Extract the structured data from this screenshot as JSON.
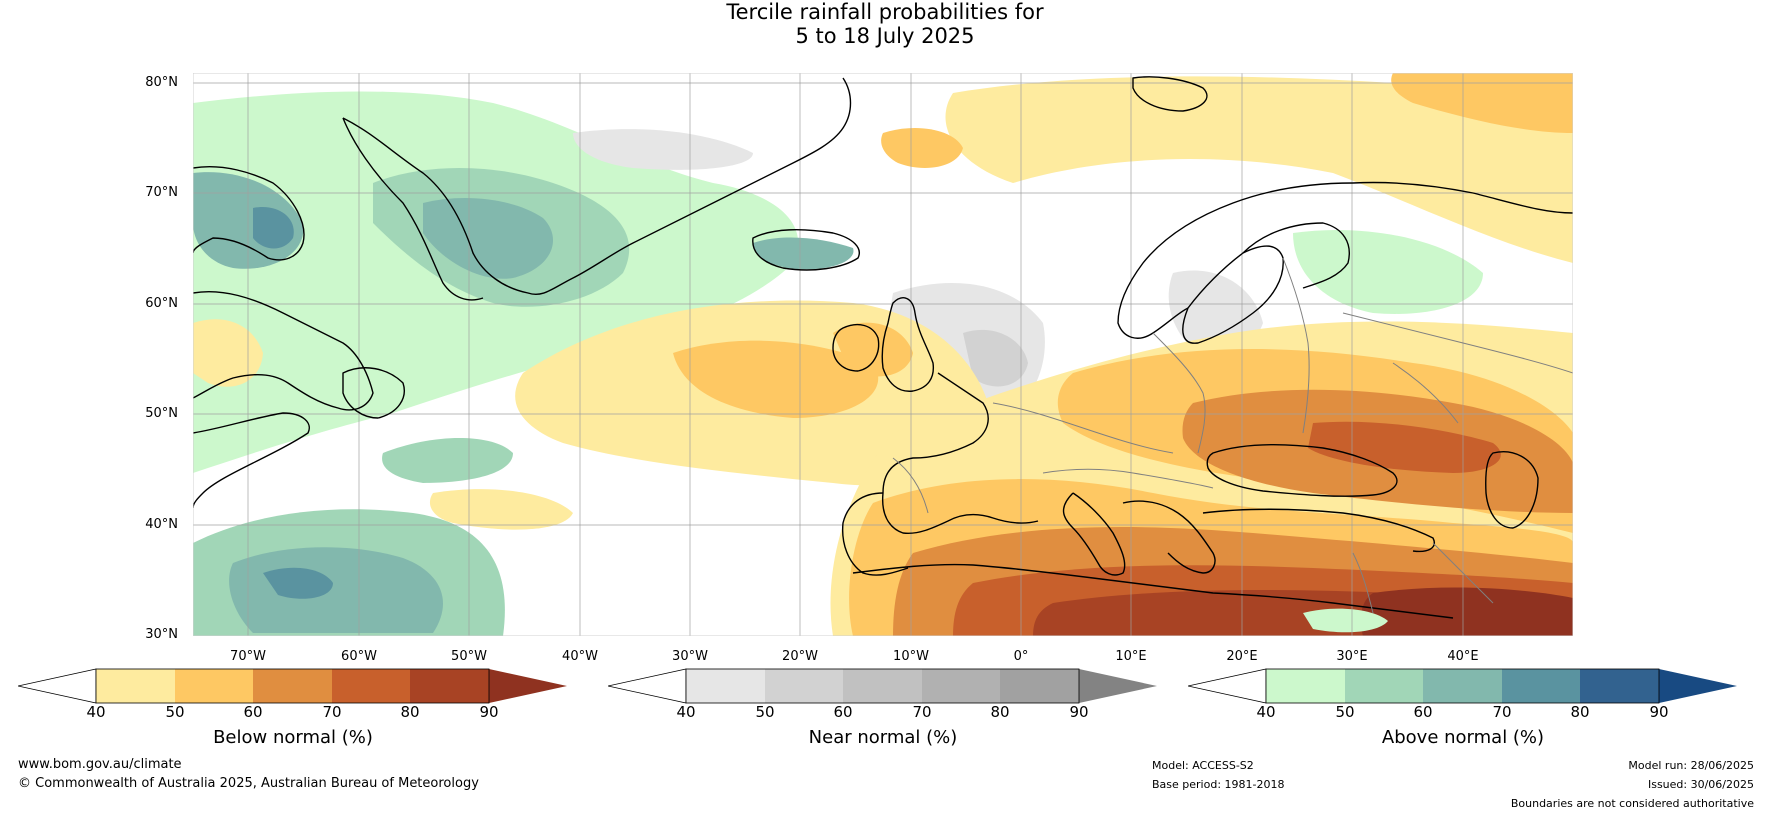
{
  "title": {
    "line1": "Tercile rainfall probabilities for",
    "line2": "5 to 18 July 2025"
  },
  "map": {
    "lat_labels": [
      "80°N",
      "70°N",
      "60°N",
      "50°N",
      "40°N",
      "30°N"
    ],
    "lon_labels": [
      "70°W",
      "60°W",
      "50°W",
      "40°W",
      "30°W",
      "20°W",
      "10°W",
      "0°",
      "10°E",
      "20°E",
      "30°E",
      "40°E"
    ],
    "lat_range": [
      30,
      80
    ],
    "lon_range": [
      -80,
      45
    ]
  },
  "colorbars": [
    {
      "label": "Below normal (%)",
      "ticks": [
        "40",
        "50",
        "60",
        "70",
        "80",
        "90"
      ],
      "colors": [
        "#ffffff",
        "#feeb9f",
        "#fec863",
        "#e08e40",
        "#c8602c",
        "#a84324",
        "#8f3220"
      ]
    },
    {
      "label": "Near normal (%)",
      "ticks": [
        "40",
        "50",
        "60",
        "70",
        "80",
        "90"
      ],
      "colors": [
        "#ffffff",
        "#e6e6e6",
        "#d2d2d2",
        "#c1c1c1",
        "#b1b1b1",
        "#a1a1a1",
        "#838383"
      ]
    },
    {
      "label": "Above normal (%)",
      "ticks": [
        "40",
        "50",
        "60",
        "70",
        "80",
        "90"
      ],
      "colors": [
        "#ffffff",
        "#ccf8cc",
        "#a1d6b7",
        "#82b8ad",
        "#5a93a0",
        "#32628f",
        "#184a82"
      ]
    }
  ],
  "footer": {
    "website": "www.bom.gov.au/climate",
    "copyright": "© Commonwealth of Australia 2025, Australian Bureau of Meteorology",
    "model": "Model: ACCESS-S2",
    "base_period": "Base period: 1981-2018",
    "model_run": "Model run: 28/06/2025",
    "issued": "Issued: 30/06/2025",
    "disclaimer": "Boundaries are not considered authoritative"
  }
}
